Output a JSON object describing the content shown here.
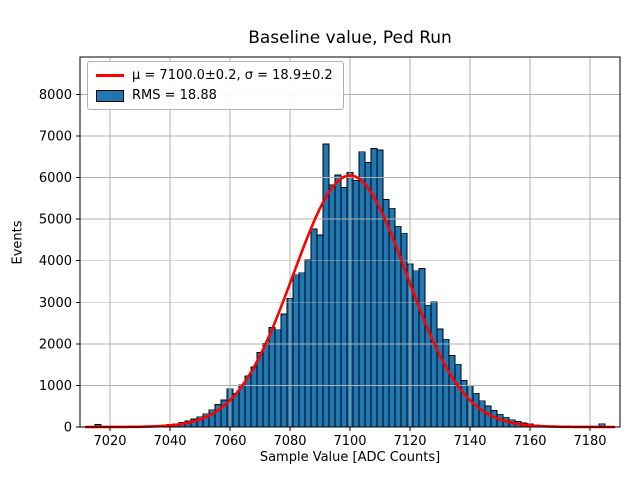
{
  "chart": {
    "title": "Baseline value, Ped Run",
    "xlabel": "Sample Value [ADC Counts]",
    "ylabel": "Events",
    "legend": [
      {
        "swatch": "line",
        "label": "μ = 7100.0±0.2, σ = 18.9±0.2"
      },
      {
        "swatch": "patch",
        "label": "RMS = 18.88"
      }
    ]
  },
  "chart_data": {
    "type": "bar",
    "subtype": "histogram-with-gaussian-fit",
    "title": "Baseline value, Ped Run",
    "xlabel": "Sample Value [ADC Counts]",
    "ylabel": "Events",
    "xlim": [
      7010,
      7190
    ],
    "ylim": [
      0,
      8900
    ],
    "xticks": [
      7020,
      7040,
      7060,
      7080,
      7100,
      7120,
      7140,
      7160,
      7180
    ],
    "yticks": [
      0,
      1000,
      2000,
      3000,
      4000,
      5000,
      6000,
      7000,
      8000
    ],
    "grid": true,
    "legend_position": "upper-left",
    "bin_width": 2,
    "first_bin_center": 7016,
    "counts": [
      60,
      1,
      1,
      2,
      3,
      5,
      7,
      10,
      15,
      21,
      30,
      44,
      58,
      76,
      108,
      145,
      190,
      248,
      320,
      415,
      540,
      650,
      920,
      810,
      1010,
      1230,
      1440,
      1790,
      2010,
      2390,
      2340,
      2720,
      3090,
      3660,
      3710,
      4020,
      4760,
      4620,
      6810,
      5820,
      6060,
      5760,
      6120,
      5930,
      6620,
      6360,
      6700,
      6660,
      5470,
      5260,
      4830,
      4660,
      3920,
      3760,
      3810,
      2930,
      3010,
      2360,
      2110,
      1720,
      1510,
      1120,
      990,
      810,
      630,
      505,
      395,
      305,
      235,
      175,
      132,
      96,
      72,
      52,
      36,
      26,
      17,
      12,
      8,
      5,
      3,
      2,
      1,
      1,
      80
    ],
    "fit": {
      "type": "gaussian",
      "mu": 7100.0,
      "mu_err": 0.2,
      "sigma": 18.9,
      "sigma_err": 0.2,
      "amplitude": 6050,
      "x_range": [
        7012,
        7188
      ]
    },
    "rms": 18.88,
    "colors": {
      "bar_fill": "#1f77b4",
      "bar_edge": "#000000",
      "fit_line": "#ff0000",
      "grid": "#b0b0b0",
      "spine": "#000000"
    }
  }
}
